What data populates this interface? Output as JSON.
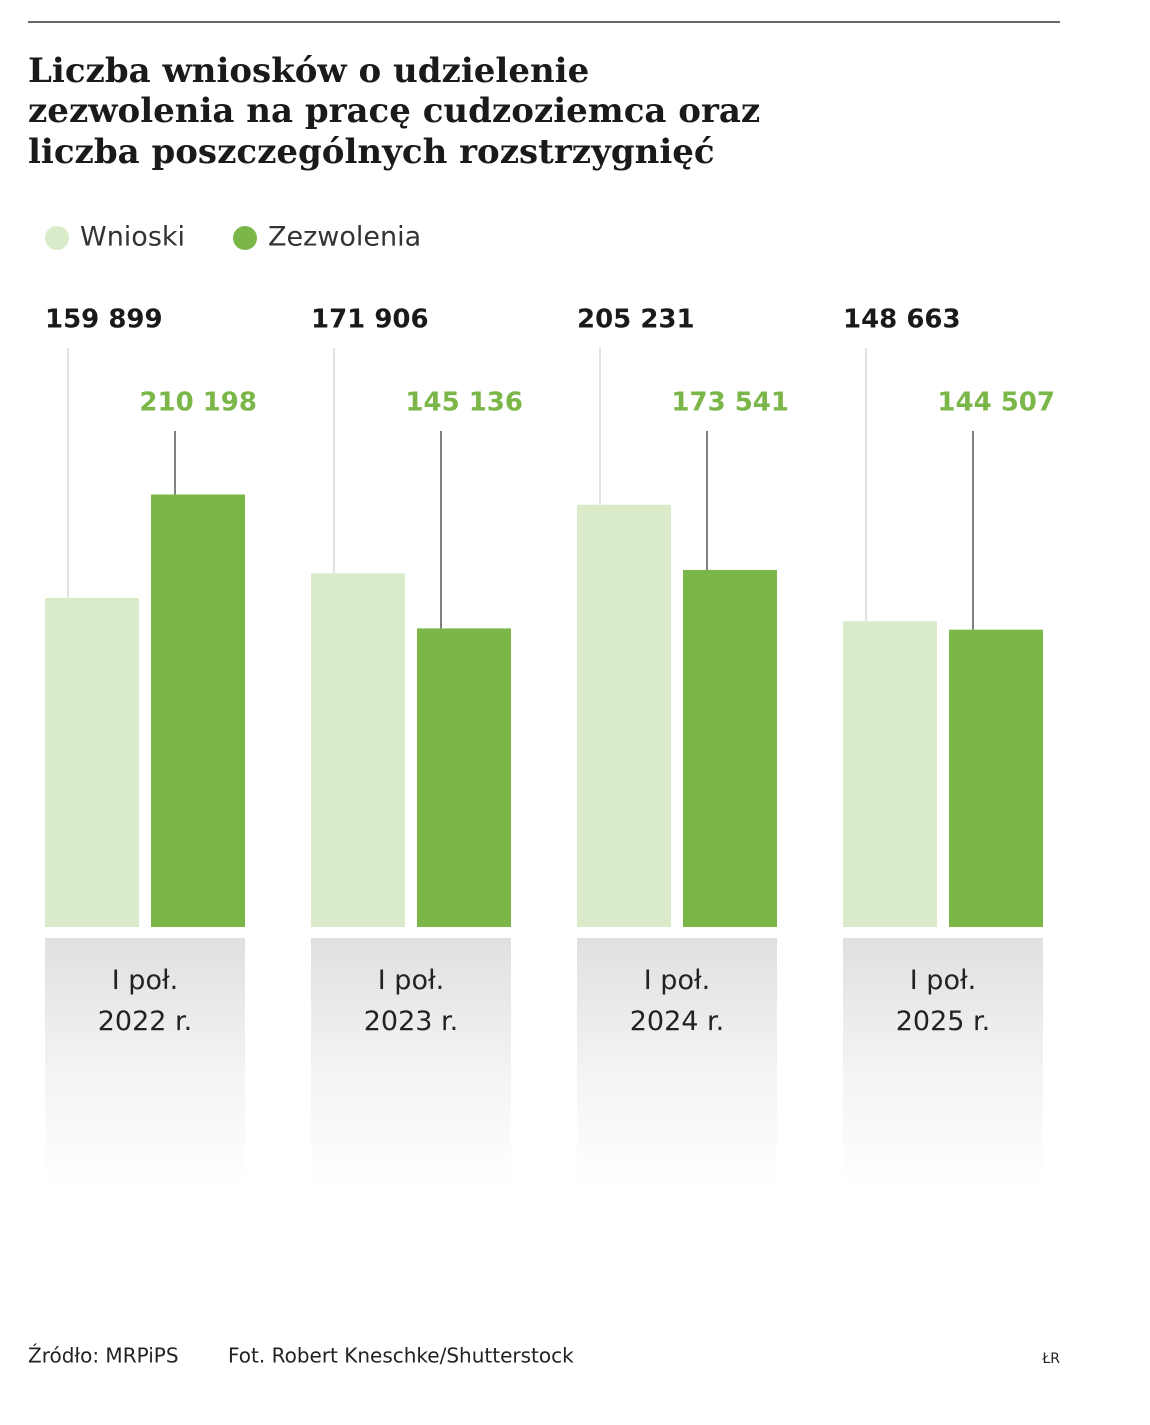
{
  "chart_data": {
    "type": "bar",
    "title": [
      "Liczba wniosków o udzielenie",
      "zezwolenia na pracę cudzoziemca oraz",
      "liczba poszczególnych rozstrzygnięć"
    ],
    "categories": [
      "I poł. 2022 r.",
      "I poł. 2023 r.",
      "I poł. 2024 r.",
      "I poł. 2025 r."
    ],
    "series": [
      {
        "name": "Wnioski",
        "color": "#d9ebc9",
        "label_color": "#1a1a1a",
        "values": [
          159899,
          171906,
          205231,
          148663
        ],
        "value_labels": [
          "159 899",
          "171 906",
          "205 231",
          "148 663"
        ]
      },
      {
        "name": "Zezwolenia",
        "color": "#7ab648",
        "label_color": "#7ab648",
        "values": [
          210198,
          145136,
          173541,
          144507
        ],
        "value_labels": [
          "210 198",
          "145 136",
          "173 541",
          "144 507"
        ]
      }
    ],
    "ylim": [
      0,
      400000
    ],
    "source": "Źródło: MRPiPS",
    "photo_credit": "Fot. Robert Kneschke/Shutterstock",
    "author": "ŁR"
  }
}
